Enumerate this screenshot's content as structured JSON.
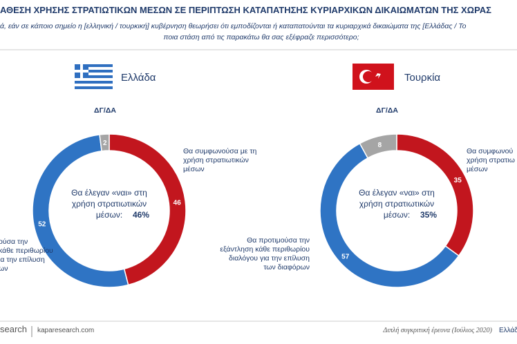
{
  "header": {
    "title": "ΑΘΕΣΗ ΧΡΗΣΗΣ ΣΤΡΑΤΙΩΤΙΚΩΝ ΜΕΣΩΝ ΣΕ ΠΕΡΙΠΤΩΣΗ ΚΑΤΑΠΑΤΗΣΗΣ ΚΥΡΙΑΡΧΙΚΩΝ ΔΙΚΑΙΩΜΑΤΩΝ ΤΗΣ ΧΩΡΑΣ",
    "subtitle": [
      "ά, εάν σε κάποιο σημείο η [ελληνική / τουρκική] κυβέρνηση θεωρήσει ότι εμποδίζονται ή καταπατούνται τα κυριαρχικά δικαιώματα της [Ελλάδας / Το",
      "ποια στάση από τις παρακάτω θα σας εξέφραζε περισσότερο;"
    ]
  },
  "chart_data": [
    {
      "type": "donut",
      "title": "Ελλάδα",
      "categories": [
        "Θα συμφωνούσα με τη\nχρήση στρατιωτικών\nμέσων",
        "ούσα την\nκάθε περιθωρίου\nια την επίλυση\nων",
        "ΔΓ/ΔΑ"
      ],
      "values": [
        46,
        52,
        2
      ],
      "colors": [
        "#c2161e",
        "#2f74c4",
        "#a5a5a5"
      ],
      "center_label": "Θα έλεγαν «ναι» στη\nχρήση στρατιωτικών\nμέσων:",
      "center_value": "46%"
    },
    {
      "type": "donut",
      "title": "Τουρκία",
      "categories": [
        "Θα συμφωνού\nχρήση στρατιω\nμέσων",
        "Θα προτιμούσα την\nεξάντληση κάθε περιθωρίου\nδιαλόγου για την επίλυση\nτων διαφόρων",
        "ΔΓ/ΔΑ"
      ],
      "values": [
        35,
        57,
        8
      ],
      "colors": [
        "#c2161e",
        "#2f74c4",
        "#a5a5a5"
      ],
      "center_label": "Θα έλεγαν «ναι» στη\nχρήση στρατιωτικών\nμέσων:",
      "center_value": "35%"
    }
  ],
  "footer": {
    "left": "search",
    "site": "kaparesearch.com",
    "right": "Διπλή συγκριτική έρευνα (Ιούλιος 2020)",
    "right_end": "Ελλάδ"
  }
}
